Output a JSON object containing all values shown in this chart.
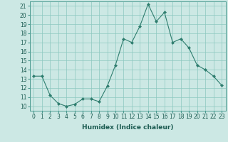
{
  "x": [
    0,
    1,
    2,
    3,
    4,
    5,
    6,
    7,
    8,
    9,
    10,
    11,
    12,
    13,
    14,
    15,
    16,
    17,
    18,
    19,
    20,
    21,
    22,
    23
  ],
  "y": [
    13.3,
    13.3,
    11.2,
    10.3,
    10.0,
    10.2,
    10.8,
    10.8,
    10.5,
    12.2,
    14.5,
    17.4,
    17.0,
    18.8,
    21.2,
    19.3,
    20.3,
    17.0,
    17.4,
    16.4,
    14.5,
    14.0,
    13.3,
    12.3
  ],
  "line_color": "#2e7d6e",
  "marker_color": "#2e7d6e",
  "bg_color": "#cce8e4",
  "grid_color": "#8cc8c0",
  "xlabel": "Humidex (Indice chaleur)",
  "ylim": [
    9.5,
    21.5
  ],
  "xlim": [
    -0.5,
    23.5
  ],
  "yticks": [
    10,
    11,
    12,
    13,
    14,
    15,
    16,
    17,
    18,
    19,
    20,
    21
  ],
  "xticks": [
    0,
    1,
    2,
    3,
    4,
    5,
    6,
    7,
    8,
    9,
    10,
    11,
    12,
    13,
    14,
    15,
    16,
    17,
    18,
    19,
    20,
    21,
    22,
    23
  ],
  "label_fontsize": 6.5,
  "tick_fontsize": 5.5
}
